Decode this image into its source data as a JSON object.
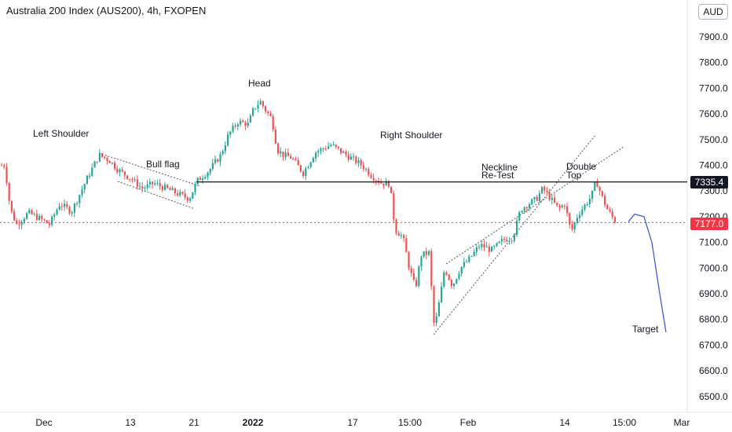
{
  "header": {
    "title": "Australia 200 Index (AUS200), 4h, FXOPEN",
    "currency": "AUD"
  },
  "price_labels": {
    "neckline": "7335.4",
    "last_price": "7177.0"
  },
  "colors": {
    "up": "#26a69a",
    "down": "#ef5350",
    "neckline": "#131722",
    "projection": "#3b5bdb",
    "last_price": "#f23645"
  },
  "chart_data": {
    "type": "candlestick",
    "title": "Australia 200 Index (AUS200), 4h, FXOPEN",
    "y_axis": {
      "side": "right",
      "ylim": [
        6430,
        8000
      ],
      "ticks": [
        6500,
        6600,
        6700,
        6800,
        6900,
        7000,
        7100,
        7200,
        7300,
        7400,
        7500,
        7600,
        7700,
        7800,
        7900
      ]
    },
    "x_ticks": [
      {
        "label": "Dec"
      },
      {
        "label": "13"
      },
      {
        "label": "21"
      },
      {
        "label": "2022"
      },
      {
        "label": "17"
      },
      {
        "label": "15:00"
      },
      {
        "label": "Feb"
      },
      {
        "label": "14"
      },
      {
        "label": "15:00"
      },
      {
        "label": "Mar"
      }
    ],
    "price_path": [
      [
        0,
        7400
      ],
      [
        5,
        7400
      ],
      [
        12,
        7230
      ],
      [
        20,
        7170
      ],
      [
        35,
        7215
      ],
      [
        45,
        7200
      ],
      [
        62,
        7170
      ],
      [
        75,
        7250
      ],
      [
        90,
        7220
      ],
      [
        110,
        7350
      ],
      [
        125,
        7440
      ],
      [
        138,
        7420
      ],
      [
        150,
        7380
      ],
      [
        165,
        7350
      ],
      [
        180,
        7310
      ],
      [
        195,
        7330
      ],
      [
        210,
        7310
      ],
      [
        225,
        7290
      ],
      [
        240,
        7270
      ],
      [
        250,
        7340
      ],
      [
        265,
        7380
      ],
      [
        280,
        7440
      ],
      [
        290,
        7520
      ],
      [
        302,
        7570
      ],
      [
        315,
        7560
      ],
      [
        322,
        7620
      ],
      [
        330,
        7650
      ],
      [
        338,
        7610
      ],
      [
        345,
        7580
      ],
      [
        352,
        7460
      ],
      [
        360,
        7440
      ],
      [
        370,
        7430
      ],
      [
        385,
        7370
      ],
      [
        400,
        7450
      ],
      [
        420,
        7480
      ],
      [
        440,
        7440
      ],
      [
        460,
        7400
      ],
      [
        472,
        7360
      ],
      [
        485,
        7330
      ],
      [
        495,
        7330
      ],
      [
        502,
        7150
      ],
      [
        512,
        7120
      ],
      [
        520,
        7000
      ],
      [
        528,
        6920
      ],
      [
        535,
        7050
      ],
      [
        545,
        7060
      ],
      [
        552,
        6760
      ],
      [
        560,
        6900
      ],
      [
        565,
        7000
      ],
      [
        575,
        6930
      ],
      [
        585,
        7000
      ],
      [
        595,
        7030
      ],
      [
        610,
        7090
      ],
      [
        625,
        7070
      ],
      [
        640,
        7110
      ],
      [
        652,
        7120
      ],
      [
        662,
        7230
      ],
      [
        672,
        7250
      ],
      [
        682,
        7270
      ],
      [
        690,
        7310
      ],
      [
        700,
        7270
      ],
      [
        710,
        7230
      ],
      [
        718,
        7250
      ],
      [
        726,
        7140
      ],
      [
        735,
        7210
      ],
      [
        745,
        7250
      ],
      [
        752,
        7280
      ],
      [
        758,
        7340
      ],
      [
        765,
        7280
      ],
      [
        772,
        7230
      ],
      [
        778,
        7200
      ],
      [
        783,
        7180
      ]
    ],
    "annotations": [
      {
        "text": "Left Shoulder"
      },
      {
        "text": "Bull flag"
      },
      {
        "text": "Head"
      },
      {
        "text": "Right Shoulder"
      },
      {
        "text": "Neckline"
      },
      {
        "text": "Re-Test"
      },
      {
        "text": "Double"
      },
      {
        "text": "Top"
      },
      {
        "text": "Target"
      }
    ],
    "neckline": 7335.4,
    "last_price": 7177.0,
    "projection": [
      [
        800,
        7180
      ],
      [
        808,
        7210
      ],
      [
        820,
        7200
      ],
      [
        830,
        7100
      ],
      [
        840,
        6900
      ],
      [
        848,
        6750
      ]
    ]
  }
}
